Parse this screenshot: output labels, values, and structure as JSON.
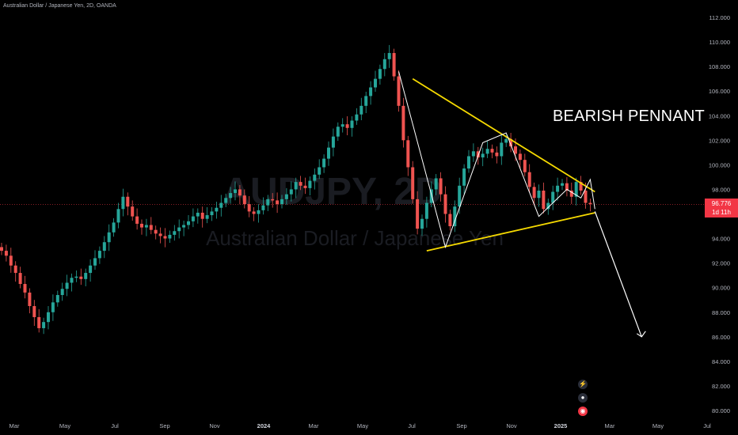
{
  "header": {
    "symbol_line": "Australian Dollar / Japanese Yen, 2D, OANDA"
  },
  "watermark": {
    "ticker": "AUDJPY, 2D",
    "name": "Australian Dollar / Japanese Yen"
  },
  "annotation": {
    "text": "BEARISH PENNANT"
  },
  "current_price": {
    "value": "96.776",
    "countdown": "1d 11h",
    "color": "#f23645"
  },
  "colors": {
    "up": "#26a69a",
    "down": "#ef5350",
    "pattern": "#f5d900",
    "path": "#ffffff"
  },
  "side_icons": [
    "lightning-icon",
    "globe-icon",
    "record-icon"
  ],
  "chart_data": {
    "type": "candlestick",
    "title": "",
    "xlabel": "",
    "ylabel": "",
    "ylim": [
      80,
      112
    ],
    "yticks": [
      "112.000",
      "110.000",
      "108.000",
      "106.000",
      "104.000",
      "102.000",
      "100.000",
      "98.000",
      "96.000",
      "94.000",
      "92.000",
      "90.000",
      "88.000",
      "86.000",
      "84.000",
      "82.000",
      "80.000"
    ],
    "xticks": [
      "Mar",
      "May",
      "Jul",
      "Sep",
      "Nov",
      "2024",
      "Mar",
      "May",
      "Jul",
      "Sep",
      "Nov",
      "2025",
      "Mar",
      "May",
      "Jul"
    ],
    "grid": false,
    "closes": [
      93.0,
      92.6,
      91.8,
      91.2,
      90.3,
      89.6,
      88.5,
      87.6,
      86.7,
      87.2,
      88.0,
      88.8,
      89.4,
      89.9,
      90.4,
      90.8,
      90.9,
      90.7,
      91.2,
      91.8,
      92.4,
      93.0,
      93.7,
      94.5,
      95.3,
      96.4,
      97.4,
      96.6,
      95.8,
      95.2,
      94.9,
      95.1,
      94.7,
      94.4,
      94.2,
      94.0,
      94.3,
      94.6,
      94.9,
      95.1,
      95.4,
      95.8,
      96.1,
      95.6,
      95.9,
      96.2,
      96.5,
      96.9,
      97.3,
      97.7,
      98.0,
      97.5,
      96.8,
      96.2,
      96.0,
      96.3,
      96.7,
      97.2,
      97.1,
      96.8,
      97.2,
      97.6,
      98.0,
      98.6,
      98.3,
      98.1,
      98.7,
      99.2,
      99.8,
      100.5,
      101.4,
      102.3,
      103.1,
      103.3,
      103.0,
      103.6,
      104.1,
      104.8,
      105.6,
      106.3,
      107.0,
      107.8,
      108.6,
      109.1,
      107.2,
      104.8,
      102.0,
      99.8,
      97.2,
      94.8,
      95.6,
      96.9,
      98.0,
      98.9,
      97.6,
      96.0,
      95.0,
      96.6,
      98.3,
      99.7,
      100.7,
      101.1,
      100.6,
      100.9,
      101.3,
      101.0,
      100.7,
      101.8,
      102.1,
      101.5,
      100.9,
      100.4,
      99.4,
      98.2,
      97.3,
      97.9,
      96.4,
      96.9,
      97.8,
      98.3,
      98.5,
      97.9,
      97.4,
      98.6,
      97.9,
      96.9,
      96.8
    ],
    "pattern": {
      "upper_line": [
        [
          88,
          107.0
        ],
        [
          127,
          97.8
        ]
      ],
      "lower_line": [
        [
          91,
          93.0
        ],
        [
          127,
          96.1
        ]
      ],
      "projection": [
        [
          127,
          96.2
        ],
        [
          137,
          86.0
        ]
      ]
    }
  }
}
